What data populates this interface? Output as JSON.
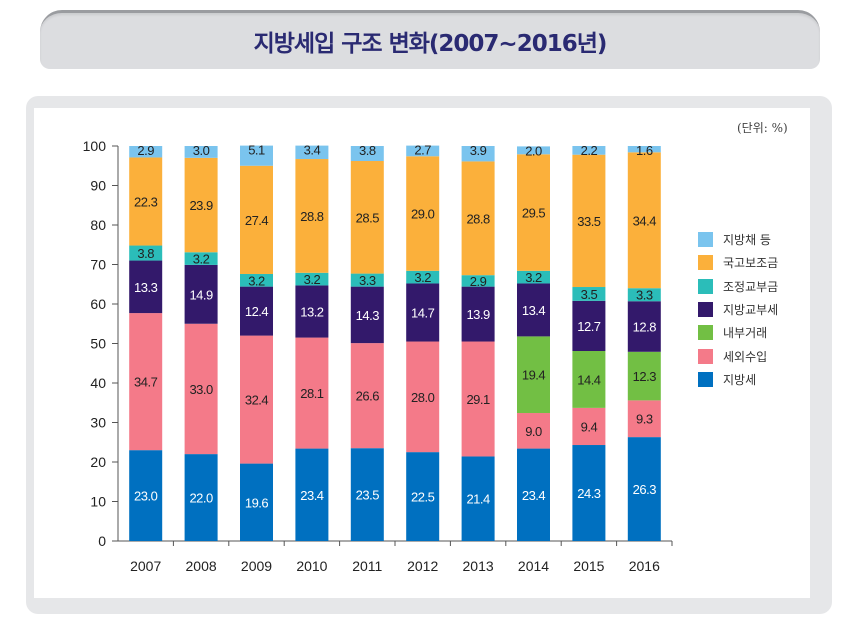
{
  "page": {
    "title": "지방세입 구조 변화(2007~2016년)",
    "unit_label": "(단위: %)"
  },
  "chart_data": {
    "type": "bar",
    "stacked": true,
    "title": "지방세입 구조 변화(2007~2016년)",
    "unit": "%",
    "xlabel": "",
    "ylabel": "",
    "ylim": [
      0,
      100
    ],
    "yticks": [
      0,
      10,
      20,
      30,
      40,
      50,
      60,
      70,
      80,
      90,
      100
    ],
    "grid": false,
    "legend_position": "right",
    "categories": [
      "2007",
      "2008",
      "2009",
      "2010",
      "2011",
      "2012",
      "2013",
      "2014",
      "2015",
      "2016"
    ],
    "series": [
      {
        "name": "지방세",
        "color": "#0070c0",
        "label_color": "#ffffff",
        "values": [
          23.0,
          22.0,
          19.6,
          23.4,
          23.5,
          22.5,
          21.4,
          23.4,
          24.3,
          26.3
        ]
      },
      {
        "name": "세외수입",
        "color": "#f47a89",
        "label_color": "#222222",
        "values": [
          34.7,
          33.0,
          32.4,
          28.1,
          26.6,
          28.0,
          29.1,
          9.0,
          9.4,
          9.3
        ]
      },
      {
        "name": "내부거래",
        "color": "#72bf44",
        "label_color": "#222222",
        "values": [
          null,
          null,
          null,
          null,
          null,
          null,
          null,
          19.4,
          14.4,
          12.3
        ]
      },
      {
        "name": "지방교부세",
        "color": "#33196b",
        "label_color": "#ffffff",
        "values": [
          13.3,
          14.9,
          12.4,
          13.2,
          14.3,
          14.7,
          13.9,
          13.4,
          12.7,
          12.8
        ]
      },
      {
        "name": "조정교부금",
        "color": "#2bbdb9",
        "label_color": "#222222",
        "values": [
          3.8,
          3.2,
          3.2,
          3.2,
          3.3,
          3.2,
          2.9,
          3.2,
          3.5,
          3.3
        ]
      },
      {
        "name": "국고보조금",
        "color": "#fbb03b",
        "label_color": "#222222",
        "values": [
          22.3,
          23.9,
          27.4,
          28.8,
          28.5,
          29.0,
          28.8,
          29.5,
          33.5,
          34.4
        ]
      },
      {
        "name": "지방채 등",
        "color": "#7ac4ee",
        "label_color": "#222222",
        "values": [
          2.9,
          3.0,
          5.1,
          3.4,
          3.8,
          2.7,
          3.9,
          2.0,
          2.2,
          1.6
        ]
      }
    ],
    "legend_order": [
      "지방채 등",
      "국고보조금",
      "조정교부금",
      "지방교부세",
      "내부거래",
      "세외수입",
      "지방세"
    ]
  }
}
